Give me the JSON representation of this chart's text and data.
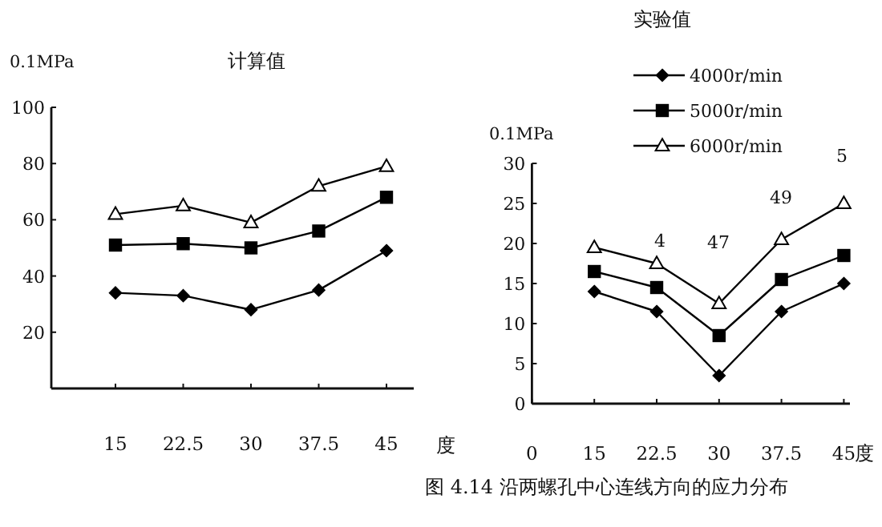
{
  "chart_data": [
    {
      "type": "line",
      "title": "计算值",
      "ylabel": "0.1MPa",
      "xlabel": "度",
      "categories": [
        "15",
        "22.5",
        "30",
        "37.5",
        "45"
      ],
      "ylim": [
        0,
        100
      ],
      "yticks": [
        20,
        40,
        60,
        80,
        100
      ],
      "grid": false,
      "legend": false,
      "series": [
        {
          "color": "#000000",
          "marker": "diamond",
          "values": [
            34,
            33,
            28,
            35,
            49
          ]
        },
        {
          "color": "#000000",
          "marker": "square",
          "values": [
            51,
            51.5,
            50,
            56,
            68
          ]
        },
        {
          "color": "#000000",
          "marker": "triangle",
          "values": [
            62,
            65,
            59,
            72,
            79
          ]
        }
      ]
    },
    {
      "type": "line",
      "title": "实验值",
      "ylabel": "0.1MPa",
      "xlabel": "度",
      "categories": [
        "0",
        "15",
        "22.5",
        "30",
        "37.5",
        "45"
      ],
      "ylim": [
        0,
        30
      ],
      "yticks": [
        0,
        5,
        10,
        15,
        20,
        25,
        30
      ],
      "grid": false,
      "legend": "top",
      "series": [
        {
          "name": "4000r/min",
          "color": "#000000",
          "marker": "diamond",
          "values": [
            null,
            14,
            11.5,
            3.5,
            11.5,
            15
          ]
        },
        {
          "name": "5000r/min",
          "color": "#000000",
          "marker": "square",
          "values": [
            null,
            16.5,
            14.5,
            8.5,
            15.5,
            18.5
          ]
        },
        {
          "name": "6000r/min",
          "color": "#000000",
          "marker": "triangle",
          "values": [
            null,
            19.5,
            17.5,
            12.5,
            20.5,
            25
          ]
        }
      ],
      "annotations": [
        "4",
        "47",
        "49",
        "5",
        "图 4.14 沿两螺孔中心连线方向的应力分布"
      ]
    }
  ]
}
